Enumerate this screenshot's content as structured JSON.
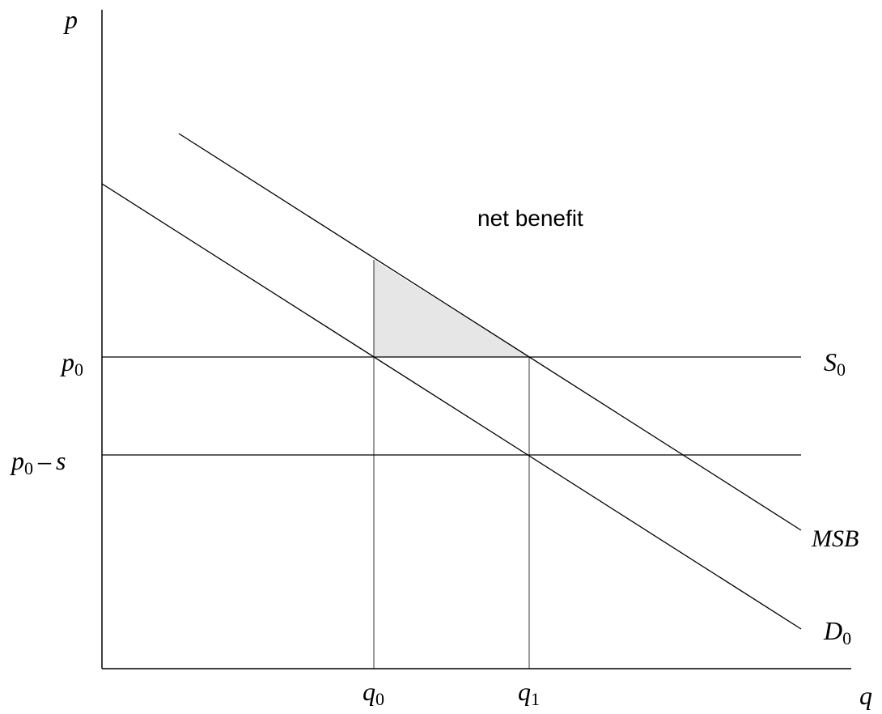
{
  "axes": {
    "y_label": "p",
    "x_label": "q"
  },
  "price_labels": {
    "p0": {
      "main": "p",
      "sub": "0"
    },
    "p0_minus_s": {
      "main": "p",
      "sub": "0",
      "minus": "–",
      "s": "s"
    }
  },
  "quantity_labels": {
    "q0": {
      "main": "q",
      "sub": "0"
    },
    "q1": {
      "main": "q",
      "sub": "1"
    }
  },
  "curves": {
    "supply": {
      "main": "S",
      "sub": "0"
    },
    "msb": {
      "label": "MSB"
    },
    "demand": {
      "main": "D",
      "sub": "0"
    }
  },
  "region": {
    "label": "net benefit",
    "fill": "#e6e6e6"
  },
  "colors": {
    "line": "#000000",
    "background": "#ffffff"
  }
}
